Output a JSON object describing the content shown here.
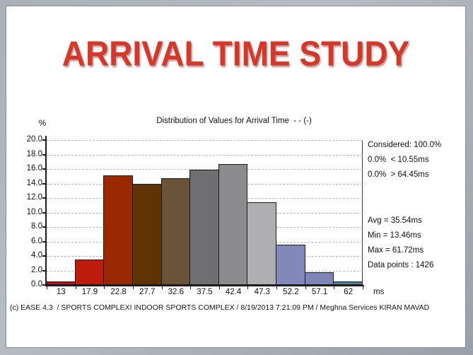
{
  "slide": {
    "title": "ARRIVAL TIME STUDY",
    "title_color": "#D5372B",
    "footer": "(c) EASE 4.3  / SPORTS COMPLEXI INDOOR SPORTS COMPLEX / 8/19/2013 7:21:09 PM / Meghna Services KIRAN MAVAD"
  },
  "chart_data": {
    "type": "bar",
    "title": "Distribution of Values for Arrival Time  - - (-)",
    "ylabel": "%",
    "xlabel": "ms",
    "ylim": [
      0,
      20
    ],
    "ytick_step": 2,
    "yticks": [
      "20.0",
      "18.0",
      "16.0",
      "14.0",
      "12.0",
      "10.0",
      "8.0",
      "6.0",
      "4.0",
      "2.0",
      "0.0"
    ],
    "categories": [
      "13",
      "17.9",
      "22.8",
      "27.7",
      "32.6",
      "37.5",
      "42.4",
      "47.3",
      "52.2",
      "57.1",
      "62"
    ],
    "values": [
      0.5,
      3.5,
      15.1,
      14.0,
      14.7,
      15.9,
      16.7,
      11.4,
      5.6,
      1.8,
      0.5
    ],
    "bar_colors": [
      "#B80E1F",
      "#C01C0E",
      "#9A2800",
      "#603305",
      "#6B5339",
      "#6F6F71",
      "#8C8C8E",
      "#AFAFB1",
      "#8289B8",
      "#7E85B5",
      "#4E7E9A"
    ],
    "grid": "horizontal-dashed",
    "legend": "none",
    "stats": {
      "considered": "Considered: 100.0%",
      "below_range": "0.0%  < 10.55ms",
      "above_range": "0.0%  > 64.45ms",
      "avg": "Avg = 35.54ms",
      "min": "Min = 13.46ms",
      "max": "Max = 61.72ms",
      "data_points": "Data points : 1426"
    }
  }
}
